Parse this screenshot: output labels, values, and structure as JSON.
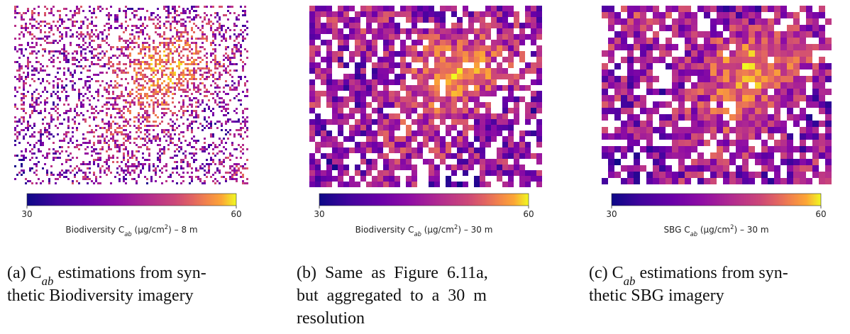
{
  "panels": [
    {
      "colorbar": {
        "lim": [
          30,
          60
        ],
        "ticks": [
          30,
          60
        ],
        "label": [
          {
            "t": "Biodiversity C"
          },
          {
            "sub": "ab"
          },
          {
            "t": " (μg/cm"
          },
          {
            "sup": "2"
          },
          {
            "t": ") – 8 m"
          }
        ]
      },
      "caption": [
        [
          {
            "t": "(a) C"
          },
          {
            "sub": "ab"
          },
          {
            "t": " estimations from syn-"
          }
        ],
        [
          {
            "t": "thetic Biodiversity imagery"
          }
        ]
      ]
    },
    {
      "colorbar": {
        "lim": [
          30,
          60
        ],
        "ticks": [
          30,
          60
        ],
        "label": [
          {
            "t": "Biodiversity C"
          },
          {
            "sub": "ab"
          },
          {
            "t": " (μg/cm"
          },
          {
            "sup": "2"
          },
          {
            "t": ") – 30 m"
          }
        ]
      },
      "caption": [
        [
          {
            "t": "(b)  Same  as  Figure  6.11a,"
          }
        ],
        [
          {
            "t": "but  aggregated  to  a  30  m"
          }
        ],
        [
          {
            "t": "resolution"
          }
        ]
      ]
    },
    {
      "colorbar": {
        "lim": [
          30,
          60
        ],
        "ticks": [
          30,
          60
        ],
        "label": [
          {
            "t": "SBG C"
          },
          {
            "sub": "ab"
          },
          {
            "t": " (μg/cm"
          },
          {
            "sup": "2"
          },
          {
            "t": ") – 30 m"
          }
        ]
      },
      "caption": [
        [
          {
            "t": "(c) C"
          },
          {
            "sub": "ab"
          },
          {
            "t": " estimations from syn-"
          }
        ],
        [
          {
            "t": "thetic SBG imagery"
          }
        ]
      ]
    }
  ]
}
